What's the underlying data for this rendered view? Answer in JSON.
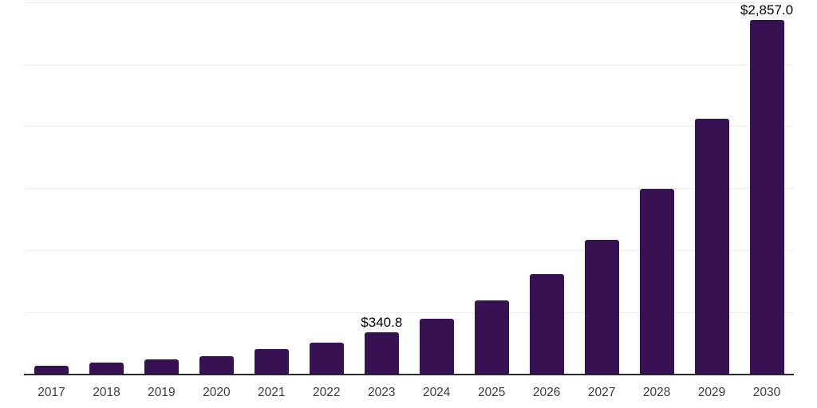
{
  "chart_data": {
    "type": "bar",
    "title": "",
    "xlabel": "",
    "ylabel": "",
    "categories": [
      "2017",
      "2018",
      "2019",
      "2020",
      "2021",
      "2022",
      "2023",
      "2024",
      "2025",
      "2026",
      "2027",
      "2028",
      "2029",
      "2030"
    ],
    "values": [
      74,
      94,
      122,
      146,
      204,
      257,
      340.8,
      447,
      600,
      810,
      1088,
      1494,
      2059,
      2857
    ],
    "labels": [
      "",
      "",
      "",
      "",
      "",
      "",
      "$340.8",
      "",
      "",
      "",
      "",
      "",
      "",
      "$2,857.0"
    ],
    "ylim": [
      0,
      3000
    ],
    "gridline_step": 500,
    "grid": "horizontal-only",
    "y_tick_labels": "none",
    "legend": "none",
    "bar_color": "#371253",
    "axis_color": "#2b2b2b",
    "gridline_color": "#ececec",
    "label_color": "#000000",
    "tick_color": "#3c3c3c",
    "background": "#ffffff"
  }
}
